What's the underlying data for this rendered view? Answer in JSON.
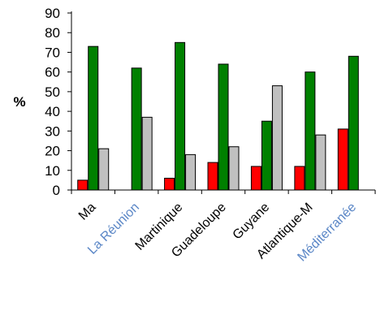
{
  "chart_data": {
    "type": "bar",
    "ylabel": "%",
    "ylim": [
      0,
      90
    ],
    "yticks": [
      0,
      10,
      20,
      30,
      40,
      50,
      60,
      70,
      80,
      90
    ],
    "categories": [
      "Ma",
      "La Réunion",
      "Martinique",
      "Guadeloupe",
      "Guyane",
      "Atlantique-M",
      "Méditerranée"
    ],
    "faded_categories": [
      "La Réunion",
      "Méditerranée"
    ],
    "series": [
      {
        "color": "#ff0000",
        "values": [
          5,
          0,
          6,
          14,
          12,
          12,
          31
        ]
      },
      {
        "color": "#008000",
        "values": [
          73,
          62,
          75,
          64,
          35,
          60,
          68
        ]
      },
      {
        "color": "#c0c0c0",
        "values": [
          21,
          37,
          18,
          22,
          53,
          28,
          null
        ]
      }
    ],
    "grid": false,
    "legend": "none"
  }
}
